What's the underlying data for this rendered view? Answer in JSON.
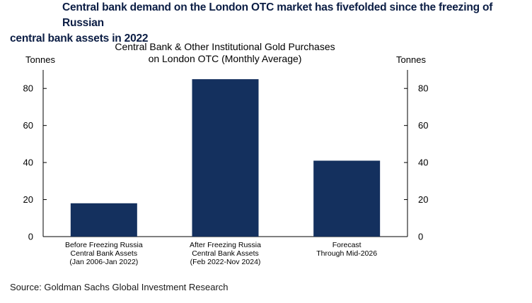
{
  "headline": {
    "line1": "Central bank demand on the London OTC market has fivefolded since the freezing of Russian",
    "line2": "central bank assets in 2022"
  },
  "source": "Source: Goldman Sachs Global Investment Research",
  "chart_data": {
    "type": "bar",
    "title_lines": [
      "Central Bank & Other Institutional Gold Purchases",
      "on London OTC (Monthly Average)"
    ],
    "ylabel_left": "Tonnes",
    "ylabel_right": "Tonnes",
    "ylim": [
      0,
      90
    ],
    "yticks": [
      0,
      20,
      40,
      60,
      80
    ],
    "categories": [
      [
        "Before Freezing Russia",
        "Central Bank Assets",
        "(Jan 2006-Jan 2022)"
      ],
      [
        "After Freezing Russia",
        "Central Bank Assets",
        "(Feb 2022-Nov 2024)"
      ],
      [
        "Forecast",
        "Through Mid-2026"
      ]
    ],
    "values": [
      18,
      85,
      41
    ],
    "bar_color": "#14305e",
    "grid": false,
    "legend": "none"
  }
}
